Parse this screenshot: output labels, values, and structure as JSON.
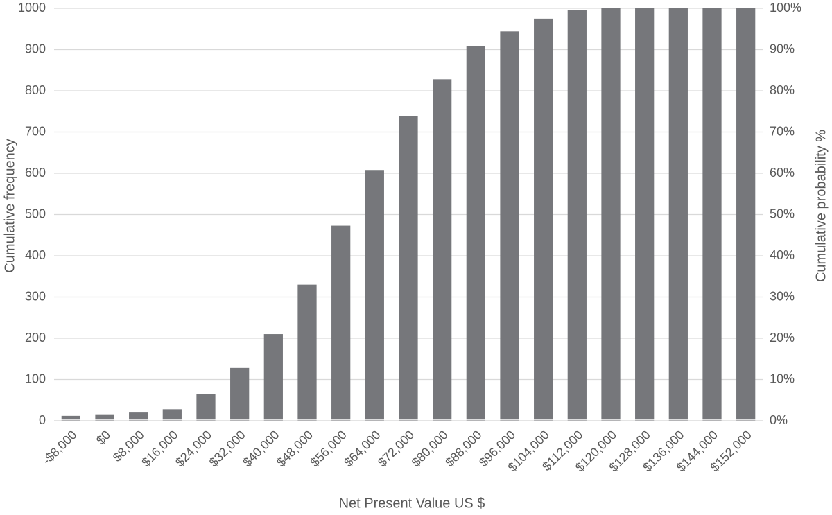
{
  "chart_data": {
    "type": "bar",
    "x_label": "Net Present Value US $",
    "y_label": "Cumulative frequency",
    "y2_label": "Cumulative probability %",
    "categories": [
      "-$8,000",
      "$0",
      "$8,000",
      "$16,000",
      "$24,000",
      "$32,000",
      "$40,000",
      "$48,000",
      "$56,000",
      "$64,000",
      "$72,000",
      "$80,000",
      "$88,000",
      "$96,000",
      "$104,000",
      "$112,000",
      "$120,000",
      "$128,000",
      "$136,000",
      "$144,000",
      "$152,000"
    ],
    "values": [
      12,
      14,
      20,
      28,
      65,
      128,
      210,
      330,
      473,
      608,
      738,
      828,
      908,
      944,
      975,
      995,
      1000,
      1000,
      1000,
      1000,
      1000
    ],
    "color": "#76777b",
    "ylim": [
      0,
      1000
    ],
    "yticks": [
      0,
      100,
      200,
      300,
      400,
      500,
      600,
      700,
      800,
      900,
      1000
    ],
    "y2lim": [
      0,
      100
    ],
    "y2ticks": [
      {
        "value": 0,
        "label": "0%"
      },
      {
        "value": 10,
        "label": "10%"
      },
      {
        "value": 20,
        "label": "20%"
      },
      {
        "value": 30,
        "label": "30%"
      },
      {
        "value": 40,
        "label": "40%"
      },
      {
        "value": 50,
        "label": "50%"
      },
      {
        "value": 60,
        "label": "60%"
      },
      {
        "value": 70,
        "label": "70%"
      },
      {
        "value": 80,
        "label": "80%"
      },
      {
        "value": 90,
        "label": "90%"
      },
      {
        "value": 100,
        "label": "100%"
      }
    ],
    "grid": true
  }
}
